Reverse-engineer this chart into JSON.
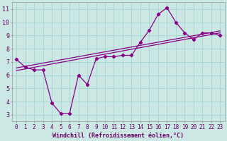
{
  "xlabel": "Windchill (Refroidissement éolien,°C)",
  "background_color": "#cce8e4",
  "grid_color": "#aad8d4",
  "line_color": "#880088",
  "xlim": [
    -0.5,
    23.5
  ],
  "ylim": [
    2.5,
    11.5
  ],
  "xticks": [
    0,
    1,
    2,
    3,
    4,
    5,
    6,
    7,
    8,
    9,
    10,
    11,
    12,
    13,
    14,
    15,
    16,
    17,
    18,
    19,
    20,
    21,
    22,
    23
  ],
  "yticks": [
    3,
    4,
    5,
    6,
    7,
    8,
    9,
    10,
    11
  ],
  "line1_x": [
    0,
    1,
    2,
    3,
    4,
    5,
    6,
    7,
    8,
    9,
    10,
    11,
    12,
    13,
    14,
    15,
    16,
    17,
    18,
    19,
    20,
    21,
    22,
    23
  ],
  "line1_y": [
    7.2,
    6.6,
    6.4,
    6.4,
    3.9,
    3.1,
    3.1,
    6.0,
    5.3,
    7.25,
    7.4,
    7.4,
    7.5,
    7.5,
    8.5,
    9.4,
    10.6,
    11.1,
    10.0,
    9.2,
    8.7,
    9.2,
    9.2,
    9.0
  ],
  "line2_x": [
    0,
    23
  ],
  "line2_y": [
    6.35,
    9.2
  ],
  "line3_x": [
    0,
    23
  ],
  "line3_y": [
    6.55,
    9.35
  ],
  "tick_fontsize": 5.5,
  "xlabel_fontsize": 6.0,
  "tick_color": "#660066",
  "xlabel_color": "#660066"
}
